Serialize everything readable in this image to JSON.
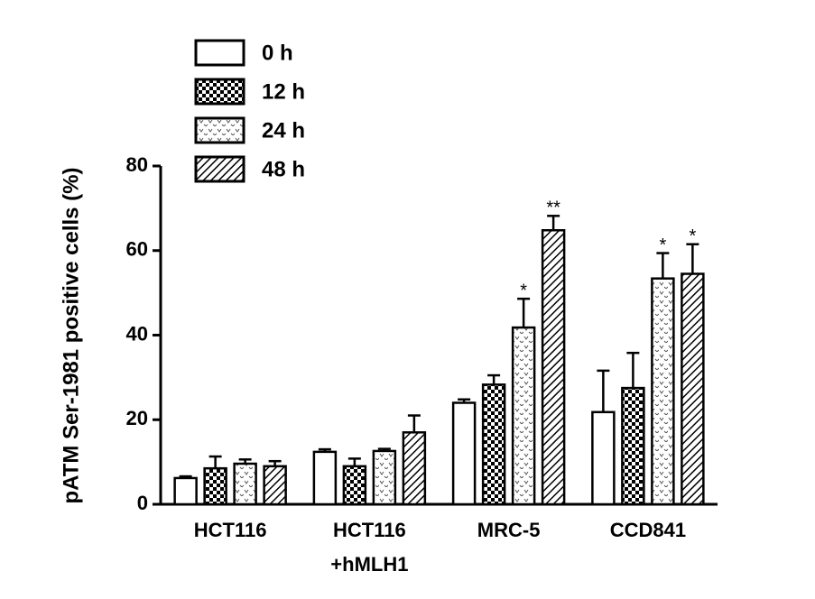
{
  "chart_data": {
    "type": "bar",
    "y_label": "pATM Ser-1981  positive cells (%)",
    "categories": [
      [
        "HCT116"
      ],
      [
        "HCT116",
        "+hMLH1"
      ],
      [
        "MRC-5"
      ],
      [
        "CCD841"
      ]
    ],
    "ylim": [
      0,
      80
    ],
    "yticks": [
      0,
      20,
      40,
      60,
      80
    ],
    "series": [
      {
        "name": "0 h",
        "color": "#ffffff",
        "pattern": "none",
        "values": [
          6.2,
          12.4,
          24,
          21.8
        ],
        "errors": [
          0.4,
          0.6,
          0.8,
          9.8
        ],
        "significance": [
          null,
          null,
          null,
          null
        ]
      },
      {
        "name": "12 h",
        "color": "#ffffff",
        "pattern": "checker",
        "values": [
          8.5,
          9,
          28.3,
          27.5
        ],
        "errors": [
          2.8,
          1.8,
          2.2,
          8.3
        ],
        "significance": [
          null,
          null,
          null,
          null
        ]
      },
      {
        "name": "24 h",
        "color": "#ffffff",
        "pattern": "wave",
        "values": [
          9.6,
          12.6,
          41.8,
          53.4
        ],
        "errors": [
          1,
          0.5,
          6.8,
          6
        ],
        "significance": [
          null,
          null,
          "*",
          "*"
        ]
      },
      {
        "name": "48 h",
        "color": "#ffffff",
        "pattern": "hatch",
        "values": [
          9,
          17,
          64.8,
          54.5
        ],
        "errors": [
          1.2,
          4,
          3.4,
          7
        ],
        "significance": [
          null,
          null,
          "**",
          "*"
        ]
      }
    ]
  }
}
